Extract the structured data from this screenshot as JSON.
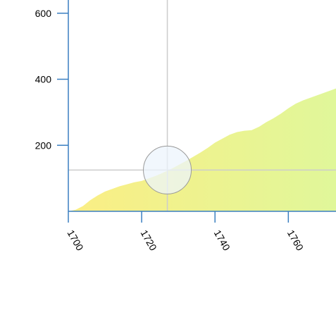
{
  "chart_data": {
    "type": "area",
    "title": "",
    "xlabel": "",
    "ylabel": "",
    "xlim": [
      1700,
      1773
    ],
    "ylim": [
      0,
      640
    ],
    "x_ticks": [
      1700,
      1720,
      1740,
      1760
    ],
    "y_ticks": [
      200,
      400,
      600
    ],
    "grid": false,
    "legend": "none",
    "gradient_colors": [
      "#fbee84",
      "#e0f79a"
    ],
    "axis_color": "#3a7fc1",
    "series": [
      {
        "x": [
          1700,
          1702,
          1704,
          1706,
          1708,
          1710,
          1712,
          1714,
          1716,
          1718,
          1720,
          1722,
          1724,
          1726,
          1728,
          1730,
          1732,
          1734,
          1736,
          1738,
          1740,
          1742,
          1744,
          1746,
          1748,
          1750,
          1752,
          1754,
          1756,
          1758,
          1760,
          1762,
          1764,
          1766,
          1768,
          1770,
          1772,
          1773
        ],
        "y": [
          0,
          5,
          16,
          34,
          48,
          60,
          68,
          76,
          82,
          88,
          92,
          100,
          108,
          118,
          128,
          140,
          152,
          165,
          178,
          192,
          208,
          220,
          232,
          240,
          244,
          246,
          256,
          270,
          282,
          296,
          312,
          326,
          336,
          344,
          352,
          360,
          368,
          372
        ]
      }
    ],
    "cursor": {
      "x": 1727,
      "y": 125
    }
  }
}
